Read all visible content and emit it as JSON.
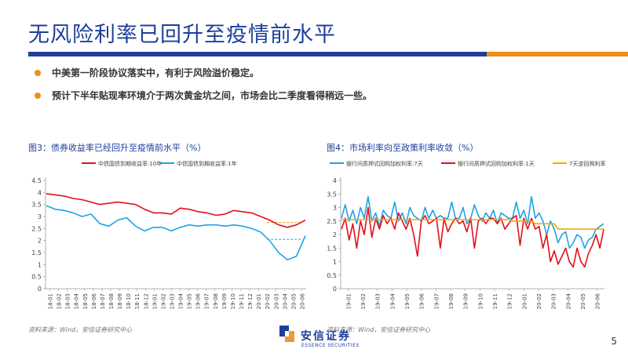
{
  "slide": {
    "title": "无风险利率已回升至疫情前水平",
    "bullets": [
      "中美第一阶段协议落实中，有利于风险溢价稳定。",
      "预计下半年贴现率环境介于两次黄金坑之间，市场会比二季度看得稍远一些。"
    ],
    "page_number": "5",
    "logo_text": "安信证券",
    "logo_sub": "ESSENCE SECURITIES"
  },
  "colors": {
    "navy": "#1f3f9a",
    "orange": "#f08c1e",
    "red": "#e3101a",
    "blue": "#1ea2e6",
    "gold": "#f5a800"
  },
  "chart_data": [
    {
      "type": "line",
      "caption": "图3：债券收益率已经回升至疫情前水平（%）",
      "source": "资料来源：Wind，安信证券研究中心",
      "ylim": [
        0,
        4.5
      ],
      "yticks": [
        "0",
        "0.5",
        "1",
        "1.5",
        "2",
        "2.5",
        "3",
        "3.5",
        "4",
        "4.5"
      ],
      "xticks": [
        "18-01",
        "18-02",
        "18-03",
        "18-04",
        "18-05",
        "18-06",
        "18-07",
        "18-08",
        "18-09",
        "18-10",
        "18-11",
        "18-12",
        "19-01",
        "19-02",
        "19-03",
        "19-04",
        "19-05",
        "19-06",
        "19-07",
        "19-08",
        "19-09",
        "19-10",
        "19-11",
        "19-12",
        "20-01",
        "20-02",
        "20-03",
        "20-04",
        "20-05",
        "20-06"
      ],
      "legend_position": "top",
      "series": [
        {
          "name": "中债国债到期收益率:10年",
          "color": "#e3101a",
          "values": [
            3.95,
            3.9,
            3.85,
            3.75,
            3.7,
            3.6,
            3.5,
            3.55,
            3.6,
            3.55,
            3.5,
            3.3,
            3.15,
            3.15,
            3.1,
            3.35,
            3.3,
            3.2,
            3.15,
            3.05,
            3.1,
            3.25,
            3.2,
            3.15,
            3.0,
            2.85,
            2.65,
            2.55,
            2.65,
            2.85
          ]
        },
        {
          "name": "中债国债到期收益率:1年",
          "color": "#1ea2e6",
          "values": [
            3.45,
            3.3,
            3.25,
            3.15,
            3.0,
            3.1,
            2.7,
            2.6,
            2.85,
            2.95,
            2.6,
            2.4,
            2.55,
            2.55,
            2.4,
            2.55,
            2.65,
            2.6,
            2.65,
            2.65,
            2.6,
            2.65,
            2.6,
            2.5,
            2.35,
            2.0,
            1.5,
            1.2,
            1.35,
            2.2
          ]
        }
      ],
      "annotations": [
        {
          "type": "dashed_hline",
          "y": 2.75,
          "color": "#f08c1e",
          "x_from": "20-02",
          "x_to": "20-06"
        },
        {
          "type": "dashed_hline",
          "y": 2.05,
          "color": "#1ea2e6",
          "x_from": "20-02",
          "x_to": "20-06"
        }
      ]
    },
    {
      "type": "line",
      "caption": "图4：市场利率向至政策利率收敛（%）",
      "source": "资料来源：Wind，安信证券研究中心",
      "ylim": [
        0,
        4
      ],
      "yticks": [
        "0",
        "0.5",
        "1",
        "1.5",
        "2",
        "2.5",
        "3",
        "3.5",
        "4"
      ],
      "xticks": [
        "19-01",
        "19-02",
        "19-03",
        "19-04",
        "19-05",
        "19-06",
        "19-07",
        "19-08",
        "19-09",
        "19-10",
        "19-11",
        "19-12",
        "20-01",
        "20-02",
        "20-03",
        "20-04",
        "20-05",
        "20-06"
      ],
      "legend_position": "top",
      "series": [
        {
          "name": "银行间质押式回购加权利率:7天",
          "color": "#1ea2e6",
          "values": [
            2.6,
            3.1,
            2.5,
            2.9,
            2.4,
            3.0,
            2.6,
            3.4,
            2.5,
            2.8,
            2.3,
            2.9,
            2.7,
            2.6,
            3.2,
            2.5,
            2.8,
            2.4,
            3.0,
            2.7,
            2.6,
            2.5,
            3.0,
            2.6,
            2.9,
            2.6,
            2.7,
            2.6,
            2.6,
            3.2,
            2.6,
            2.6,
            3.0,
            2.4,
            2.6,
            3.1,
            2.7,
            2.5,
            2.8,
            2.6,
            2.9,
            2.4,
            2.8,
            2.7,
            2.6,
            2.6,
            3.2,
            2.6,
            2.9,
            2.4,
            3.4,
            2.6,
            2.8,
            2.5,
            2.0,
            2.5,
            2.2,
            1.7,
            2.0,
            2.1,
            1.5,
            1.7,
            2.0,
            1.9,
            1.5,
            1.8,
            1.9,
            2.2,
            2.3,
            2.4
          ]
        },
        {
          "name": "银行间质押式回购加权利率:1天",
          "color": "#e3101a",
          "values": [
            2.2,
            2.6,
            1.8,
            2.4,
            1.5,
            2.5,
            2.0,
            3.0,
            1.9,
            2.6,
            2.2,
            2.7,
            2.4,
            2.6,
            2.2,
            2.8,
            2.5,
            2.2,
            2.6,
            2.0,
            1.2,
            2.5,
            2.7,
            2.4,
            2.5,
            2.6,
            1.5,
            2.6,
            2.1,
            2.4,
            2.6,
            2.4,
            2.5,
            2.1,
            2.6,
            1.5,
            2.5,
            2.6,
            2.4,
            2.6,
            2.6,
            2.4,
            2.6,
            2.2,
            2.4,
            2.6,
            2.7,
            1.6,
            2.6,
            2.2,
            2.6,
            2.2,
            2.3,
            1.5,
            2.0,
            1.0,
            1.4,
            0.9,
            1.2,
            1.5,
            1.0,
            0.8,
            1.5,
            1.0,
            0.8,
            1.3,
            1.6,
            2.0,
            1.5,
            2.2
          ]
        },
        {
          "name": "7天逆回购利率",
          "color": "#f5a800",
          "values": [
            2.55,
            2.55,
            2.55,
            2.55,
            2.55,
            2.55,
            2.55,
            2.55,
            2.55,
            2.55,
            2.55,
            2.55,
            2.55,
            2.55,
            2.55,
            2.55,
            2.55,
            2.55,
            2.55,
            2.55,
            2.55,
            2.55,
            2.55,
            2.55,
            2.55,
            2.55,
            2.55,
            2.55,
            2.55,
            2.55,
            2.55,
            2.55,
            2.55,
            2.55,
            2.55,
            2.55,
            2.55,
            2.55,
            2.55,
            2.55,
            2.55,
            2.55,
            2.55,
            2.55,
            2.55,
            2.5,
            2.5,
            2.5,
            2.5,
            2.5,
            2.5,
            2.4,
            2.4,
            2.4,
            2.4,
            2.4,
            2.4,
            2.2,
            2.2,
            2.2,
            2.2,
            2.2,
            2.2,
            2.2,
            2.2,
            2.2,
            2.2,
            2.2,
            2.2,
            2.2
          ]
        }
      ]
    }
  ]
}
